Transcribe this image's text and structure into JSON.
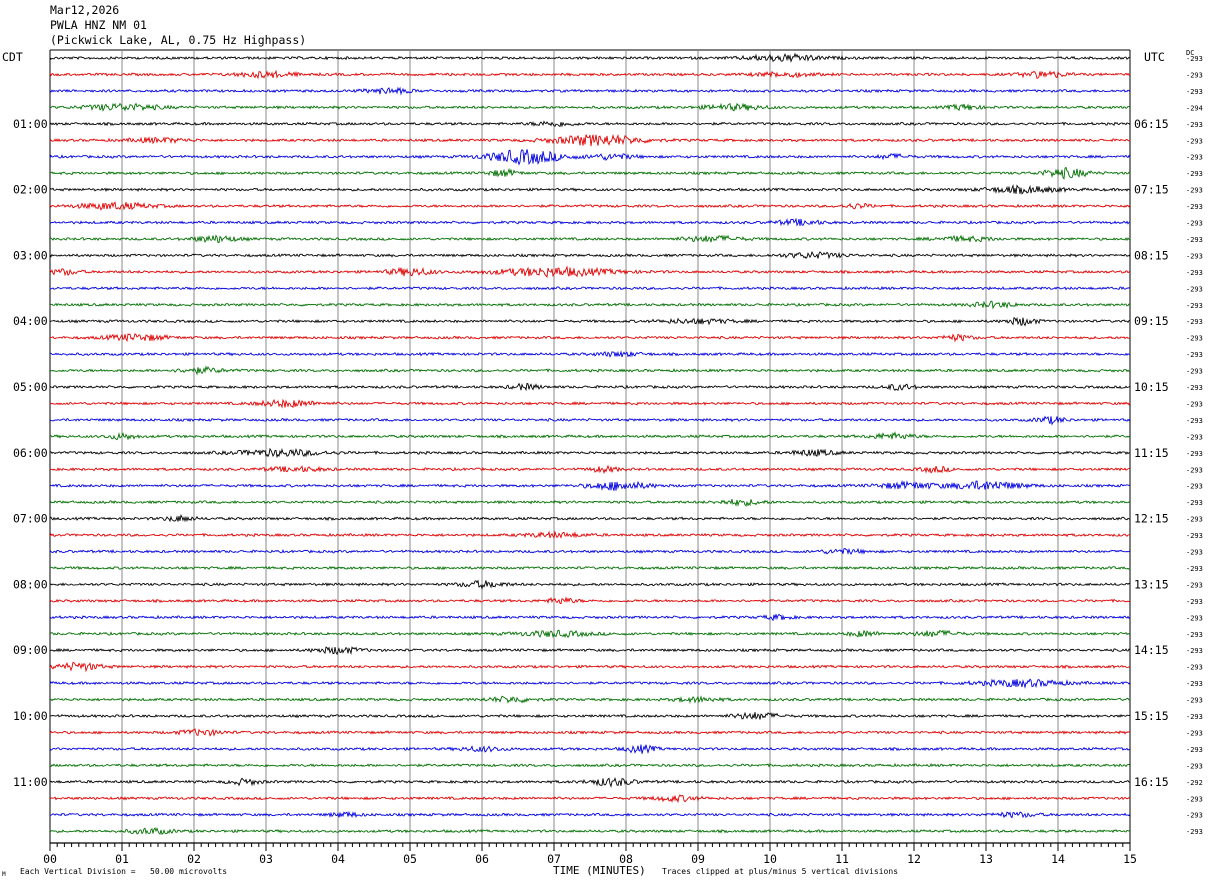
{
  "header": {
    "date": "Mar12,2026",
    "station": "PWLA HNZ NM 01",
    "location": "(Pickwick Lake, AL, 0.75 Hz Highpass)"
  },
  "left_timezone": "CDT",
  "right_timezone": "UTC",
  "dc_label": "DC",
  "footer": {
    "division_note": "Each Vertical Division =   50.00 microvolts",
    "clip_note": "Traces clipped at plus/minus 5 vertical divisions",
    "corner_mark": "M"
  },
  "colors": {
    "trace_cycle": [
      "#000000",
      "#e00000",
      "#0000e0",
      "#007000"
    ],
    "grid": "#888888"
  },
  "chart_data": {
    "type": "line",
    "xlabel": "TIME (MINUTES)",
    "xlim": [
      0,
      15
    ],
    "x_ticks": [
      "00",
      "01",
      "02",
      "03",
      "04",
      "05",
      "06",
      "07",
      "08",
      "09",
      "10",
      "11",
      "12",
      "13",
      "14",
      "15"
    ],
    "trace_count": 48,
    "minutes_per_trace": 15,
    "left_hour_labels": [
      "01:00",
      "02:00",
      "03:00",
      "04:00",
      "05:00",
      "06:00",
      "07:00",
      "08:00",
      "09:00",
      "10:00",
      "11:00"
    ],
    "right_hour_labels": [
      "06:15",
      "07:15",
      "08:15",
      "09:15",
      "10:15",
      "11:15",
      "12:15",
      "13:15",
      "14:15",
      "15:15",
      "16:15"
    ],
    "dc_offsets": [
      "-293",
      "-293",
      "-293",
      "-294",
      "-293",
      "-293",
      "-293",
      "-293",
      "-293",
      "-293",
      "-293",
      "-293",
      "-293",
      "-293",
      "-293",
      "-293",
      "-293",
      "-293",
      "-293",
      "-293",
      "-293",
      "-293",
      "-293",
      "-293",
      "-293",
      "-293",
      "-293",
      "-293",
      "-293",
      "-293",
      "-293",
      "-293",
      "-293",
      "-293",
      "-293",
      "-293",
      "-293",
      "-293",
      "-293",
      "-293",
      "-293",
      "-293",
      "-293",
      "-293",
      "-292",
      "-293",
      "-293",
      "-293"
    ],
    "bursts": [
      [
        [
          10.2,
          0.5,
          3
        ]
      ],
      [
        [
          3.0,
          0.4,
          2.5
        ],
        [
          10.2,
          0.4,
          2
        ],
        [
          13.8,
          0.3,
          3
        ]
      ],
      [
        [
          4.7,
          0.3,
          2.5
        ]
      ],
      [
        [
          1.0,
          0.5,
          3
        ],
        [
          9.5,
          0.4,
          2.5
        ],
        [
          12.7,
          0.2,
          2.5
        ]
      ],
      [
        [
          7.0,
          0.3,
          2
        ]
      ],
      [
        [
          7.6,
          0.6,
          5
        ],
        [
          1.5,
          0.4,
          2
        ]
      ],
      [
        [
          6.6,
          0.5,
          6.5
        ],
        [
          7.8,
          0.3,
          2.5
        ],
        [
          11.7,
          0.2,
          2
        ]
      ],
      [
        [
          6.3,
          0.2,
          3
        ],
        [
          14.1,
          0.3,
          4.5
        ]
      ],
      [
        [
          13.5,
          0.5,
          3
        ]
      ],
      [
        [
          0.9,
          0.5,
          3
        ],
        [
          11.2,
          0.2,
          2
        ]
      ],
      [
        [
          10.4,
          0.3,
          2.5
        ]
      ],
      [
        [
          2.3,
          0.3,
          3
        ],
        [
          9.2,
          0.4,
          2.5
        ],
        [
          12.7,
          0.4,
          2
        ]
      ],
      [
        [
          10.6,
          0.4,
          2.5
        ]
      ],
      [
        [
          7.0,
          0.8,
          4
        ],
        [
          5.0,
          0.3,
          3.5
        ],
        [
          0.2,
          0.2,
          2.5
        ]
      ],
      [
        []
      ],
      [
        [
          13.1,
          0.3,
          2.5
        ]
      ],
      [
        [
          9.0,
          0.5,
          2
        ],
        [
          13.5,
          0.2,
          3.5
        ]
      ],
      [
        [
          1.2,
          0.4,
          3
        ],
        [
          12.6,
          0.2,
          2.5
        ]
      ],
      [
        [
          7.9,
          0.3,
          2
        ]
      ],
      [
        [
          2.1,
          0.3,
          2.5
        ]
      ],
      [
        [
          6.6,
          0.2,
          2.5
        ],
        [
          11.8,
          0.2,
          2.5
        ]
      ],
      [
        [
          3.3,
          0.4,
          3
        ]
      ],
      [
        [
          13.9,
          0.2,
          3
        ]
      ],
      [
        [
          1.0,
          0.2,
          2.5
        ],
        [
          11.7,
          0.3,
          2.5
        ]
      ],
      [
        [
          3.2,
          0.6,
          3
        ],
        [
          10.6,
          0.3,
          2.5
        ]
      ],
      [
        [
          3.4,
          0.4,
          2
        ],
        [
          7.7,
          0.2,
          2.5
        ],
        [
          12.3,
          0.2,
          2.5
        ]
      ],
      [
        [
          7.9,
          0.4,
          4
        ],
        [
          11.9,
          0.4,
          3
        ],
        [
          13.0,
          0.5,
          4
        ]
      ],
      [
        [
          9.6,
          0.3,
          2.5
        ]
      ],
      [
        [
          1.8,
          0.2,
          2.5
        ]
      ],
      [
        [
          7.0,
          0.4,
          2
        ]
      ],
      [
        [
          11.0,
          0.3,
          2
        ]
      ],
      [
        []
      ],
      [
        [
          6.0,
          0.3,
          3
        ]
      ],
      [
        [
          7.1,
          0.2,
          2.5
        ]
      ],
      [
        [
          10.1,
          0.2,
          2
        ]
      ],
      [
        [
          7.0,
          0.5,
          2.5
        ],
        [
          11.3,
          0.2,
          2.5
        ],
        [
          12.3,
          0.3,
          2.5
        ]
      ],
      [
        [
          4.0,
          0.3,
          3
        ]
      ],
      [
        [
          0.4,
          0.3,
          3.5
        ]
      ],
      [
        [
          13.5,
          0.6,
          3
        ]
      ],
      [
        [
          6.4,
          0.3,
          2.5
        ],
        [
          9.0,
          0.3,
          2
        ]
      ],
      [
        [
          9.8,
          0.3,
          3
        ]
      ],
      [
        [
          2.1,
          0.3,
          2.5
        ]
      ],
      [
        [
          8.2,
          0.2,
          3.5
        ],
        [
          6.0,
          0.3,
          2
        ]
      ],
      [
        []
      ],
      [
        [
          7.8,
          0.3,
          3.5
        ],
        [
          2.7,
          0.2,
          2.5
        ]
      ],
      [
        [
          8.7,
          0.3,
          2.5
        ]
      ],
      [
        [
          4.1,
          0.2,
          2
        ],
        [
          13.4,
          0.3,
          2
        ]
      ],
      [
        [
          1.4,
          0.3,
          2.5
        ]
      ]
    ]
  }
}
